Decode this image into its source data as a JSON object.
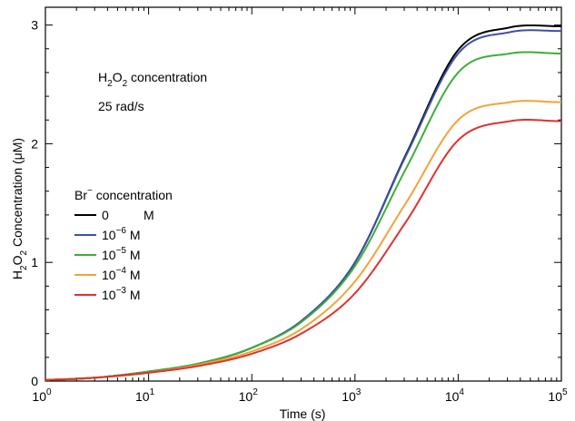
{
  "chart_data": {
    "type": "line",
    "xlabel": "Time (s)",
    "ylabel_main": "H",
    "ylabel_sub1": "2",
    "ylabel_mid": "O",
    "ylabel_sub2": "2",
    "ylabel_tail": " Concentration (μM)",
    "xscale": "log",
    "xlim": [
      1,
      100000
    ],
    "ylim": [
      0,
      3.15
    ],
    "grid": false,
    "x_ticks": [
      {
        "base": "10",
        "exp": "0"
      },
      {
        "base": "10",
        "exp": "1"
      },
      {
        "base": "10",
        "exp": "2"
      },
      {
        "base": "10",
        "exp": "3"
      },
      {
        "base": "10",
        "exp": "4"
      },
      {
        "base": "10",
        "exp": "5"
      }
    ],
    "y_ticks": [
      "0",
      "1",
      "2",
      "3"
    ],
    "annotations": {
      "line1_a": "H",
      "line1_sub1": "2",
      "line1_b": "O",
      "line1_sub2": "2",
      "line1_c": " concentration",
      "line2": "25 rad/s"
    },
    "legend": {
      "placement": "center-left",
      "title_a": "Br",
      "title_sup": "−",
      "title_b": " concentration"
    },
    "series": [
      {
        "name": "0 M",
        "label_main": "0",
        "label_exp": "",
        "label_unit": "M",
        "color": "#000000",
        "x": [
          1,
          3.16,
          10,
          31.6,
          100,
          316,
          1000,
          3162,
          10000,
          31623,
          100000
        ],
        "y": [
          0.01,
          0.03,
          0.08,
          0.15,
          0.28,
          0.52,
          1.0,
          1.92,
          2.79,
          2.98,
          2.99
        ]
      },
      {
        "name": "10^-6 M",
        "label_main": "10",
        "label_exp": "−6",
        "label_unit": " M",
        "color": "#3f4fa8",
        "x": [
          1,
          3.16,
          10,
          31.6,
          100,
          316,
          1000,
          3162,
          10000,
          31623,
          100000
        ],
        "y": [
          0.01,
          0.03,
          0.08,
          0.15,
          0.28,
          0.52,
          1.0,
          1.91,
          2.76,
          2.94,
          2.95
        ]
      },
      {
        "name": "10^-5 M",
        "label_main": "10",
        "label_exp": "−5",
        "label_unit": " M",
        "color": "#3dae3a",
        "x": [
          1,
          3.16,
          10,
          31.6,
          100,
          316,
          1000,
          3162,
          10000,
          31623,
          100000
        ],
        "y": [
          0.01,
          0.03,
          0.08,
          0.15,
          0.28,
          0.51,
          0.97,
          1.8,
          2.6,
          2.76,
          2.76
        ]
      },
      {
        "name": "10^-4 M",
        "label_main": "10",
        "label_exp": "−4",
        "label_unit": " M",
        "color": "#f2a33a",
        "x": [
          1,
          3.16,
          10,
          31.6,
          100,
          316,
          1000,
          3162,
          10000,
          31623,
          100000
        ],
        "y": [
          0.01,
          0.03,
          0.07,
          0.14,
          0.25,
          0.45,
          0.84,
          1.51,
          2.2,
          2.35,
          2.35
        ]
      },
      {
        "name": "10^-3 M",
        "label_main": "10",
        "label_exp": "−3",
        "label_unit": " M",
        "color": "#e0322d",
        "x": [
          1,
          3.16,
          10,
          31.6,
          100,
          316,
          1000,
          3162,
          10000,
          31623,
          100000
        ],
        "y": [
          0.01,
          0.03,
          0.07,
          0.13,
          0.23,
          0.41,
          0.74,
          1.35,
          2.03,
          2.19,
          2.19
        ]
      }
    ]
  }
}
